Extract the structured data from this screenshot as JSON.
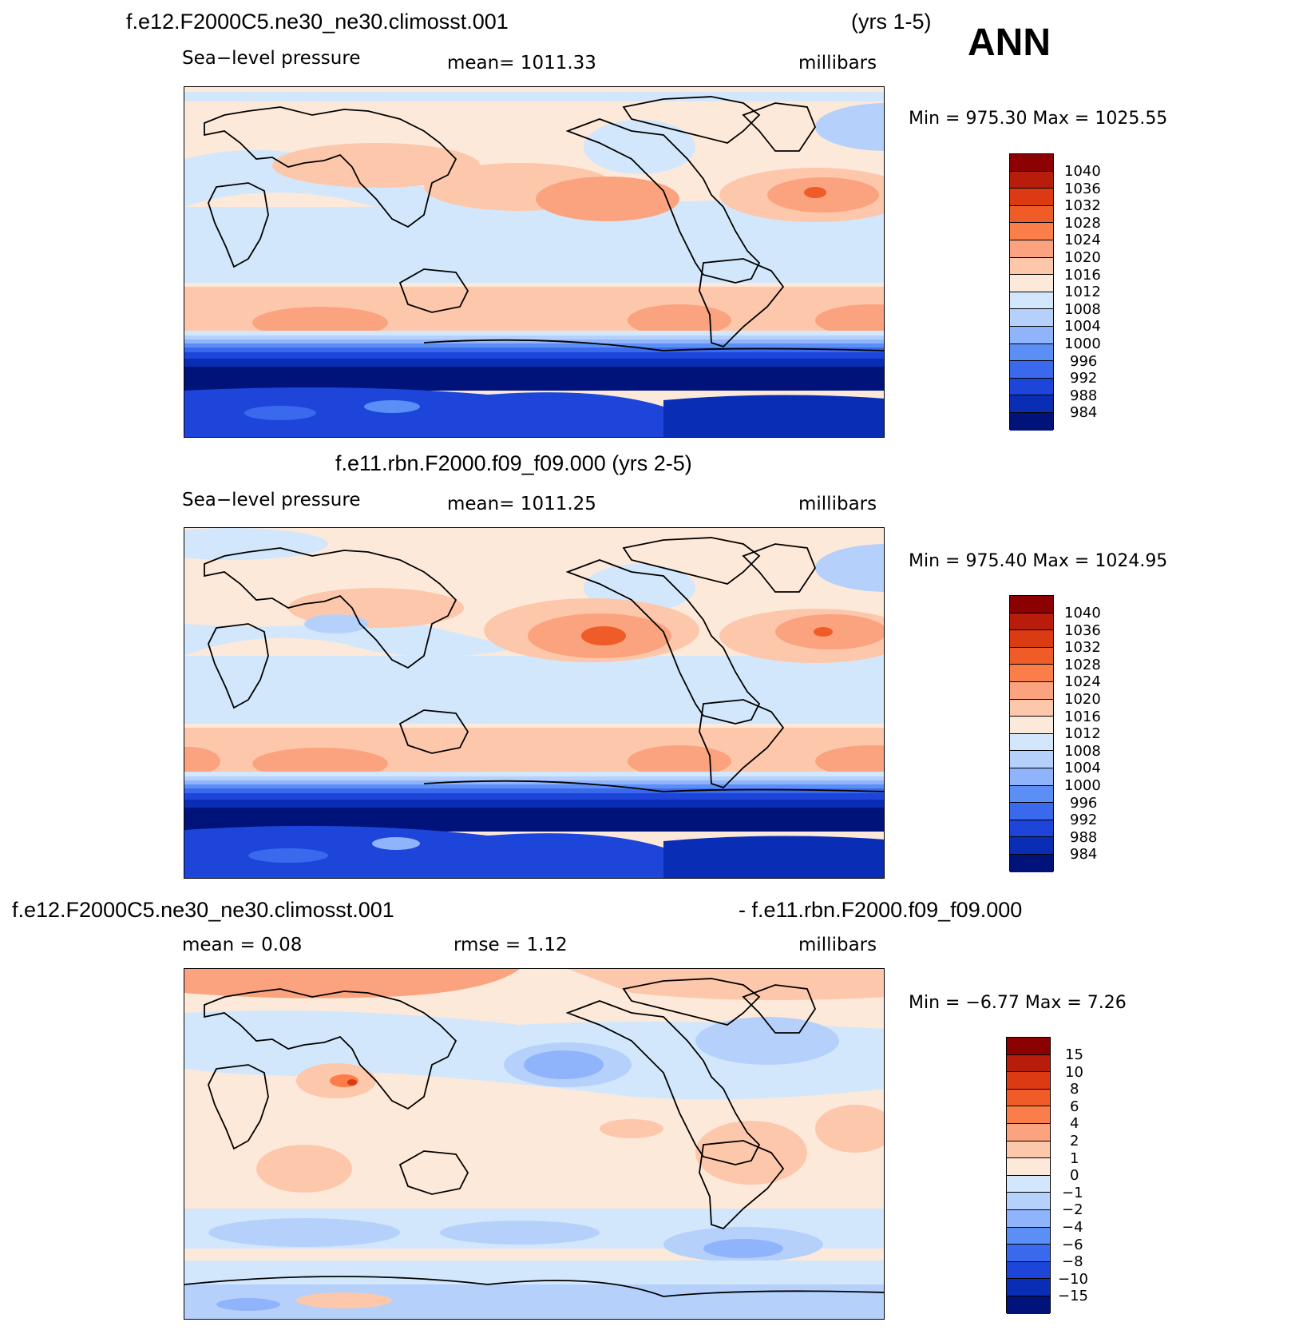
{
  "figure": {
    "season": "ANN"
  },
  "panel1": {
    "case": "f.e12.F2000C5.ne30_ne30.climosst.001",
    "years": "(yrs 1-5)",
    "variable": "Sea−level pressure",
    "mean": "mean=  1011.33",
    "units": "millibars",
    "minmax": "Min  =  975.30  Max  =  1025.55",
    "colorbar_labels": [
      "1040",
      "1036",
      "1032",
      "1028",
      "1024",
      "1020",
      "1016",
      "1012",
      "1008",
      "1004",
      "1000",
      "996",
      "992",
      "988",
      "984"
    ]
  },
  "panel2": {
    "case": "f.e11.rbn.F2000.f09_f09.000 (yrs 2-5)",
    "variable": "Sea−level pressure",
    "mean": "mean=  1011.25",
    "units": "millibars",
    "minmax": "Min  =  975.40  Max  =  1024.95",
    "colorbar_labels": [
      "1040",
      "1036",
      "1032",
      "1028",
      "1024",
      "1020",
      "1016",
      "1012",
      "1008",
      "1004",
      "1000",
      "996",
      "992",
      "988",
      "984"
    ]
  },
  "panel3": {
    "case_a": "f.e12.F2000C5.ne30_ne30.climosst.001",
    "case_b": "- f.e11.rbn.F2000.f09_f09.000",
    "mean": "mean  =     0.08",
    "rmse": "rmse  =     1.12",
    "units": "millibars",
    "minmax": "Min  =    −6.77  Max  =     7.26",
    "colorbar_labels": [
      "15",
      "10",
      "8",
      "6",
      "4",
      "2",
      "1",
      "0",
      "−1",
      "−2",
      "−4",
      "−6",
      "−8",
      "−10",
      "−15"
    ]
  },
  "colors": {
    "palette": [
      "#8b0000",
      "#b81d0c",
      "#dc3a13",
      "#f05c27",
      "#fb7d4a",
      "#fba27e",
      "#fdc7ab",
      "#fde9d9",
      "#d2e7fb",
      "#b5d1fb",
      "#8fb4fb",
      "#5b8ff6",
      "#3a69ee",
      "#1d45da",
      "#0a2db5",
      "#00137a"
    ]
  }
}
